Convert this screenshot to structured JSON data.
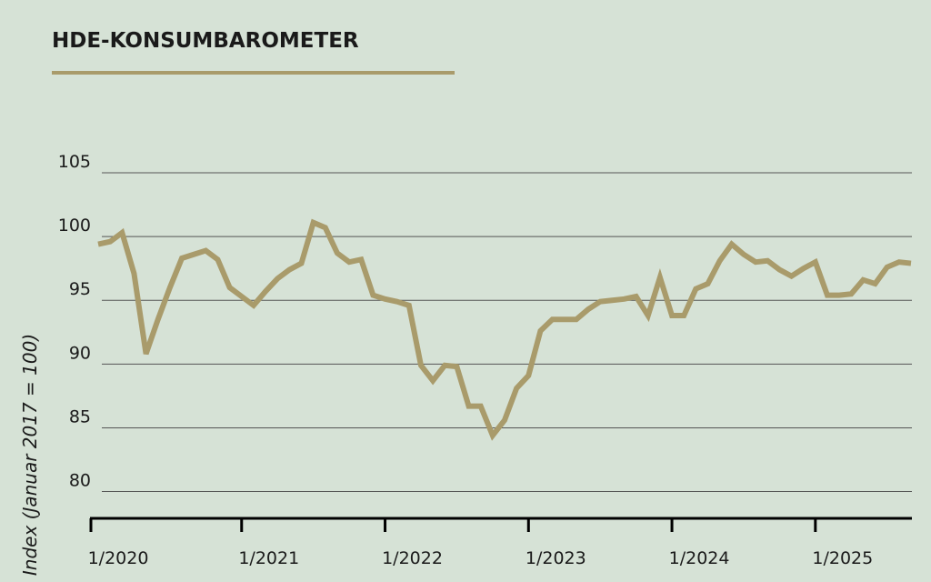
{
  "chart_data": {
    "type": "line",
    "title": "HDE-KONSUMBAROMETER",
    "y_label": "Index (Januar 2017 = 100)",
    "x": [
      "1/2020",
      "2/2020",
      "3/2020",
      "4/2020",
      "5/2020",
      "6/2020",
      "7/2020",
      "8/2020",
      "9/2020",
      "10/2020",
      "11/2020",
      "12/2020",
      "1/2021",
      "2/2021",
      "3/2021",
      "4/2021",
      "5/2021",
      "6/2021",
      "7/2021",
      "8/2021",
      "9/2021",
      "10/2021",
      "11/2021",
      "12/2021",
      "1/2022",
      "2/2022",
      "3/2022",
      "4/2022",
      "5/2022",
      "6/2022",
      "7/2022",
      "8/2022",
      "9/2022",
      "10/2022",
      "11/2022",
      "12/2022",
      "1/2023",
      "2/2023",
      "3/2023",
      "4/2023",
      "5/2023",
      "6/2023",
      "7/2023",
      "8/2023",
      "9/2023",
      "10/2023",
      "11/2023",
      "12/2023",
      "1/2024",
      "2/2024",
      "3/2024",
      "4/2024",
      "5/2024",
      "6/2024",
      "7/2024",
      "8/2024",
      "9/2024",
      "10/2024",
      "11/2024",
      "12/2024",
      "1/2025",
      "2/2025",
      "3/2025",
      "4/2025",
      "5/2025",
      "6/2025",
      "7/2025",
      "8/2025",
      "9/2025"
    ],
    "series": [
      {
        "name": "HDE-Konsumbarometer",
        "color": "#a99b6b",
        "values": [
          99.4,
          99.6,
          100.3,
          97.1,
          90.8,
          93.5,
          96.0,
          98.3,
          98.6,
          98.9,
          98.2,
          96.0,
          95.3,
          94.6,
          95.7,
          96.7,
          97.4,
          97.9,
          101.1,
          100.7,
          98.7,
          98.0,
          98.2,
          95.4,
          95.1,
          94.9,
          94.6,
          89.9,
          88.7,
          89.9,
          89.8,
          86.7,
          86.7,
          84.4,
          85.6,
          88.1,
          89.1,
          92.6,
          93.5,
          93.5,
          93.5,
          94.3,
          94.9,
          95.0,
          95.1,
          95.3,
          93.8,
          96.8,
          93.8,
          93.8,
          95.9,
          96.3,
          98.1,
          99.4,
          98.6,
          98.0,
          98.1,
          97.4,
          96.9,
          97.5,
          98.0,
          95.4,
          95.4,
          95.5,
          96.6,
          96.3,
          97.6,
          98.0,
          97.9
        ]
      }
    ],
    "xticks": [
      "1/2020",
      "1/2021",
      "1/2022",
      "1/2023",
      "1/2024",
      "1/2025"
    ],
    "ylim": [
      77.9,
      106
    ],
    "yticks": [
      80,
      85,
      90,
      95,
      100,
      105
    ],
    "grid": true
  }
}
